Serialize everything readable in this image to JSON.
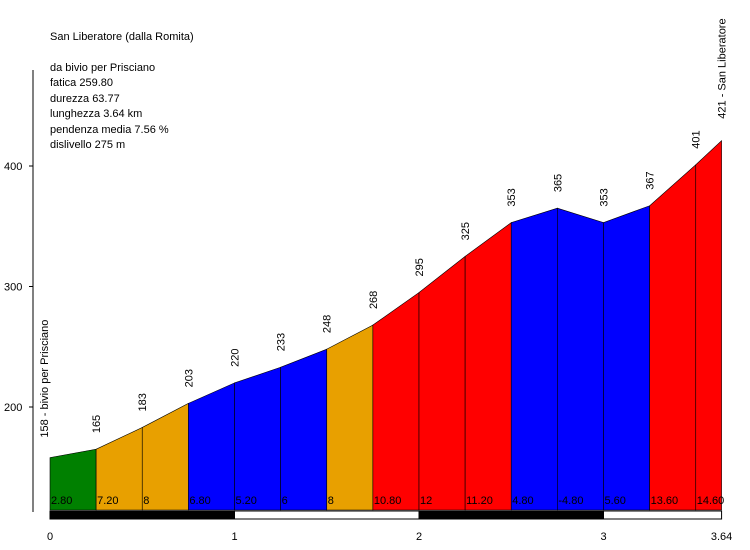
{
  "info": {
    "title": "San Liberatore (dalla Romita)",
    "lines": [
      "da bivio per Prisciano",
      "fatica 259.80",
      "durezza 63.77",
      "lunghezza 3.64 km",
      "pendenza media 7.56 %",
      "dislivello 275 m"
    ]
  },
  "chart_data": {
    "type": "area",
    "xlim": [
      0,
      3.64
    ],
    "ylim_ticks": [
      200,
      300,
      400
    ],
    "x_ticks": [
      "0",
      "1",
      "2",
      "3",
      "3.64"
    ],
    "start_label": "158 - bivio per Prisciano",
    "end_label": "421 - San Liberatore",
    "points": [
      {
        "x": 0,
        "y": 158
      },
      {
        "x": 0.25,
        "y": 165
      },
      {
        "x": 0.5,
        "y": 183
      },
      {
        "x": 0.75,
        "y": 203
      },
      {
        "x": 1.0,
        "y": 220
      },
      {
        "x": 1.25,
        "y": 233
      },
      {
        "x": 1.5,
        "y": 248
      },
      {
        "x": 1.75,
        "y": 268
      },
      {
        "x": 2.0,
        "y": 295
      },
      {
        "x": 2.25,
        "y": 325
      },
      {
        "x": 2.5,
        "y": 353
      },
      {
        "x": 2.75,
        "y": 365
      },
      {
        "x": 3.0,
        "y": 353
      },
      {
        "x": 3.25,
        "y": 367
      },
      {
        "x": 3.5,
        "y": 401
      },
      {
        "x": 3.64,
        "y": 421
      }
    ],
    "elevation_labels": [
      "165",
      "183",
      "203",
      "220",
      "233",
      "248",
      "268",
      "295",
      "325",
      "353",
      "365",
      "353",
      "367",
      "401"
    ],
    "segments": [
      {
        "grade": "2.80",
        "color": "#008000"
      },
      {
        "grade": "7.20",
        "color": "#E8A000"
      },
      {
        "grade": "8",
        "color": "#E8A000"
      },
      {
        "grade": "6.80",
        "color": "#0000FF"
      },
      {
        "grade": "5.20",
        "color": "#0000FF"
      },
      {
        "grade": "6",
        "color": "#0000FF"
      },
      {
        "grade": "8",
        "color": "#E8A000"
      },
      {
        "grade": "10.80",
        "color": "#FF0000"
      },
      {
        "grade": "12",
        "color": "#FF0000"
      },
      {
        "grade": "11.20",
        "color": "#FF0000"
      },
      {
        "grade": "4.80",
        "color": "#0000FF"
      },
      {
        "grade": "-4.80",
        "color": "#0000FF"
      },
      {
        "grade": "5.60",
        "color": "#0000FF"
      },
      {
        "grade": "13.60",
        "color": "#FF0000"
      },
      {
        "grade": "14.60",
        "color": "#FF0000"
      }
    ]
  }
}
